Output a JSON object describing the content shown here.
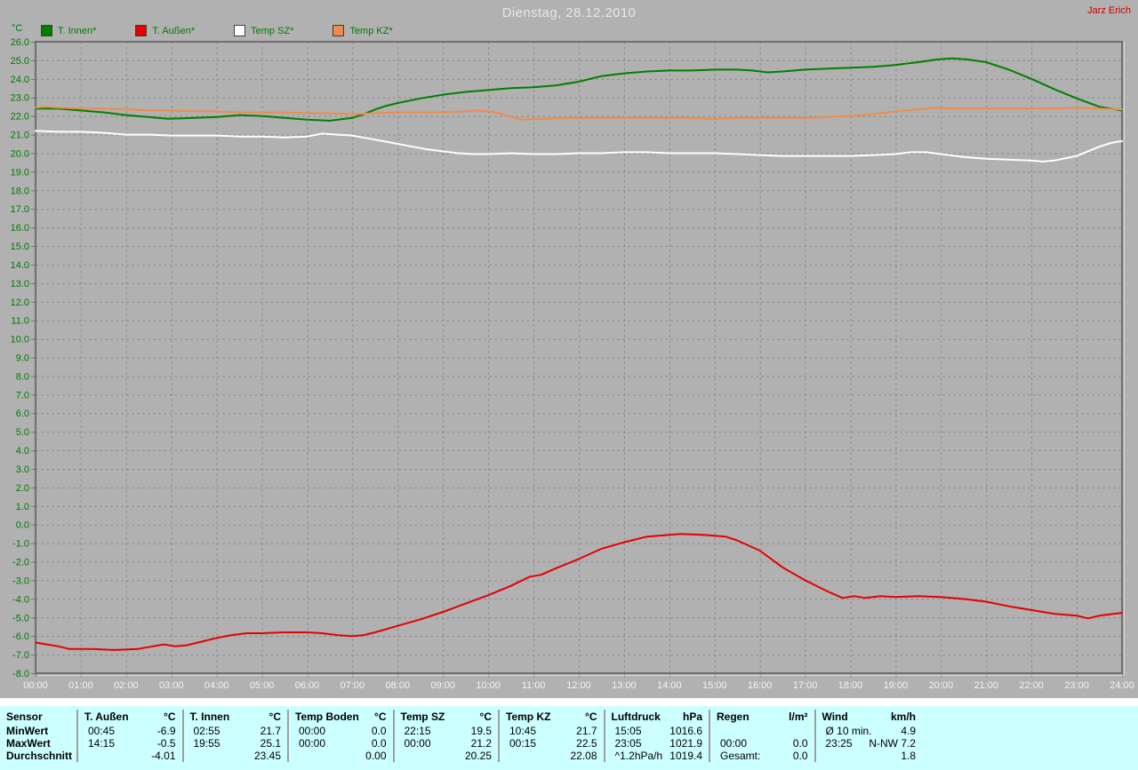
{
  "header": {
    "title": "Dienstag, 28.12.2010",
    "watermark": "Jarz Erich",
    "y_axis_unit": "°C"
  },
  "colors": {
    "background": "#b1b1b1",
    "plot_grid": "#8d8d8d",
    "plot_axis": "#6e6e6e",
    "y_tick_label": "#007b00",
    "x_tick_label": "#f4f4f4",
    "title_text": "#e7e7e7",
    "watermark_text": "#cc0000",
    "legend_text": "#007b00",
    "table_background": "#ccffff",
    "table_text": "#000000",
    "table_divider": "#9e9e9e",
    "gap_strip": "#ffffff"
  },
  "chart_data": {
    "type": "line",
    "title": "Dienstag, 28.12.2010",
    "xlabel": "",
    "ylabel": "°C",
    "x_range": [
      0,
      24
    ],
    "ylim": [
      -8,
      26
    ],
    "y_tick_step": 1,
    "grid": "dashed",
    "legend_position": "top-left",
    "x_tick_labels": [
      "00:00",
      "01:00",
      "02:00",
      "03:00",
      "04:00",
      "05:00",
      "06:00",
      "07:00",
      "08:00",
      "09:00",
      "10:00",
      "11:00",
      "12:00",
      "13:00",
      "14:00",
      "15:00",
      "16:00",
      "17:00",
      "18:00",
      "19:00",
      "20:00",
      "21:00",
      "22:00",
      "23:00",
      "24:00"
    ],
    "y_tick_labels": [
      "-8.0",
      "-7.0",
      "-6.0",
      "-5.0",
      "-4.0",
      "-3.0",
      "-2.0",
      "-1.0",
      "0.0",
      "1.0",
      "2.0",
      "3.0",
      "4.0",
      "5.0",
      "6.0",
      "7.0",
      "8.0",
      "9.0",
      "10.0",
      "11.0",
      "12.0",
      "13.0",
      "14.0",
      "15.0",
      "16.0",
      "17.0",
      "18.0",
      "19.0",
      "20.0",
      "21.0",
      "22.0",
      "23.0",
      "24.0",
      "25.0",
      "26.0"
    ],
    "series": [
      {
        "name": "T. Innen*",
        "color": "#007f00",
        "points": [
          [
            0,
            22.4
          ],
          [
            0.5,
            22.4
          ],
          [
            1,
            22.3
          ],
          [
            1.5,
            22.2
          ],
          [
            2,
            22.05
          ],
          [
            2.5,
            21.95
          ],
          [
            2.92,
            21.85
          ],
          [
            3.5,
            21.9
          ],
          [
            4,
            21.95
          ],
          [
            4.5,
            22.05
          ],
          [
            5,
            22.0
          ],
          [
            5.5,
            21.9
          ],
          [
            6,
            21.8
          ],
          [
            6.5,
            21.75
          ],
          [
            7,
            21.9
          ],
          [
            7.25,
            22.1
          ],
          [
            7.5,
            22.35
          ],
          [
            7.75,
            22.55
          ],
          [
            8,
            22.7
          ],
          [
            8.5,
            22.95
          ],
          [
            9,
            23.15
          ],
          [
            9.5,
            23.3
          ],
          [
            10,
            23.4
          ],
          [
            10.5,
            23.5
          ],
          [
            11,
            23.55
          ],
          [
            11.5,
            23.65
          ],
          [
            12,
            23.85
          ],
          [
            12.5,
            24.15
          ],
          [
            13,
            24.3
          ],
          [
            13.5,
            24.4
          ],
          [
            14,
            24.45
          ],
          [
            14.5,
            24.45
          ],
          [
            15,
            24.5
          ],
          [
            15.5,
            24.5
          ],
          [
            15.83,
            24.45
          ],
          [
            16.17,
            24.35
          ],
          [
            16.5,
            24.4
          ],
          [
            17,
            24.5
          ],
          [
            17.5,
            24.55
          ],
          [
            18,
            24.6
          ],
          [
            18.5,
            24.65
          ],
          [
            19,
            24.75
          ],
          [
            19.5,
            24.9
          ],
          [
            19.92,
            25.05
          ],
          [
            20.25,
            25.1
          ],
          [
            20.58,
            25.05
          ],
          [
            21,
            24.9
          ],
          [
            21.5,
            24.5
          ],
          [
            22,
            24.0
          ],
          [
            22.5,
            23.45
          ],
          [
            23,
            22.95
          ],
          [
            23.5,
            22.5
          ],
          [
            24,
            22.3
          ]
        ]
      },
      {
        "name": "T. Außen*",
        "color": "#e60000",
        "points": [
          [
            0,
            -6.35
          ],
          [
            0.5,
            -6.55
          ],
          [
            0.75,
            -6.7
          ],
          [
            1.25,
            -6.7
          ],
          [
            1.75,
            -6.75
          ],
          [
            2.25,
            -6.7
          ],
          [
            2.6,
            -6.55
          ],
          [
            2.83,
            -6.45
          ],
          [
            3.08,
            -6.55
          ],
          [
            3.33,
            -6.5
          ],
          [
            3.67,
            -6.3
          ],
          [
            4,
            -6.1
          ],
          [
            4.33,
            -5.95
          ],
          [
            4.67,
            -5.85
          ],
          [
            5,
            -5.85
          ],
          [
            5.5,
            -5.8
          ],
          [
            6,
            -5.8
          ],
          [
            6.33,
            -5.85
          ],
          [
            6.67,
            -5.95
          ],
          [
            7,
            -6.0
          ],
          [
            7.25,
            -5.95
          ],
          [
            7.5,
            -5.8
          ],
          [
            8,
            -5.45
          ],
          [
            8.5,
            -5.1
          ],
          [
            9,
            -4.7
          ],
          [
            9.5,
            -4.25
          ],
          [
            10,
            -3.8
          ],
          [
            10.5,
            -3.3
          ],
          [
            10.92,
            -2.8
          ],
          [
            11.17,
            -2.7
          ],
          [
            11.5,
            -2.35
          ],
          [
            12,
            -1.85
          ],
          [
            12.5,
            -1.3
          ],
          [
            13,
            -0.95
          ],
          [
            13.5,
            -0.65
          ],
          [
            14,
            -0.55
          ],
          [
            14.25,
            -0.5
          ],
          [
            14.75,
            -0.55
          ],
          [
            15.25,
            -0.65
          ],
          [
            15.5,
            -0.85
          ],
          [
            16,
            -1.4
          ],
          [
            16.5,
            -2.3
          ],
          [
            17,
            -3.0
          ],
          [
            17.5,
            -3.6
          ],
          [
            17.83,
            -3.95
          ],
          [
            18.08,
            -3.85
          ],
          [
            18.33,
            -3.95
          ],
          [
            18.67,
            -3.85
          ],
          [
            19,
            -3.9
          ],
          [
            19.5,
            -3.85
          ],
          [
            20,
            -3.9
          ],
          [
            20.5,
            -4.0
          ],
          [
            21,
            -4.15
          ],
          [
            21.5,
            -4.4
          ],
          [
            22,
            -4.6
          ],
          [
            22.5,
            -4.8
          ],
          [
            23,
            -4.9
          ],
          [
            23.25,
            -5.05
          ],
          [
            23.5,
            -4.9
          ],
          [
            24,
            -4.75
          ]
        ]
      },
      {
        "name": "Temp SZ*",
        "color": "#ffffff",
        "points": [
          [
            0,
            21.2
          ],
          [
            0.5,
            21.15
          ],
          [
            1,
            21.15
          ],
          [
            1.5,
            21.1
          ],
          [
            2,
            21.0
          ],
          [
            2.5,
            21.0
          ],
          [
            3,
            20.95
          ],
          [
            3.5,
            20.95
          ],
          [
            4,
            20.95
          ],
          [
            4.5,
            20.9
          ],
          [
            5,
            20.9
          ],
          [
            5.5,
            20.85
          ],
          [
            6,
            20.9
          ],
          [
            6.33,
            21.05
          ],
          [
            6.67,
            21.0
          ],
          [
            7,
            20.95
          ],
          [
            7.33,
            20.8
          ],
          [
            7.67,
            20.65
          ],
          [
            8,
            20.5
          ],
          [
            8.33,
            20.35
          ],
          [
            8.67,
            20.2
          ],
          [
            9,
            20.1
          ],
          [
            9.33,
            20.0
          ],
          [
            9.67,
            19.95
          ],
          [
            10,
            19.95
          ],
          [
            10.5,
            20.0
          ],
          [
            11,
            19.95
          ],
          [
            11.5,
            19.95
          ],
          [
            12,
            20.0
          ],
          [
            12.5,
            20.0
          ],
          [
            13,
            20.05
          ],
          [
            13.5,
            20.05
          ],
          [
            14,
            20.0
          ],
          [
            14.5,
            20.0
          ],
          [
            15,
            20.0
          ],
          [
            15.5,
            19.95
          ],
          [
            16,
            19.9
          ],
          [
            16.5,
            19.85
          ],
          [
            17,
            19.85
          ],
          [
            17.5,
            19.85
          ],
          [
            18,
            19.85
          ],
          [
            18.5,
            19.9
          ],
          [
            19,
            19.95
          ],
          [
            19.33,
            20.05
          ],
          [
            19.67,
            20.05
          ],
          [
            20,
            19.95
          ],
          [
            20.5,
            19.8
          ],
          [
            21,
            19.7
          ],
          [
            21.5,
            19.65
          ],
          [
            22,
            19.6
          ],
          [
            22.25,
            19.55
          ],
          [
            22.5,
            19.6
          ],
          [
            23,
            19.85
          ],
          [
            23.5,
            20.35
          ],
          [
            23.75,
            20.55
          ],
          [
            24,
            20.65
          ]
        ]
      },
      {
        "name": "Temp KZ*",
        "color": "#f08a4c",
        "points": [
          [
            0,
            22.45
          ],
          [
            0.25,
            22.5
          ],
          [
            0.5,
            22.45
          ],
          [
            1,
            22.4
          ],
          [
            1.5,
            22.4
          ],
          [
            2,
            22.35
          ],
          [
            2.5,
            22.3
          ],
          [
            3,
            22.3
          ],
          [
            3.5,
            22.25
          ],
          [
            4,
            22.25
          ],
          [
            4.5,
            22.2
          ],
          [
            5,
            22.2
          ],
          [
            5.5,
            22.2
          ],
          [
            6,
            22.15
          ],
          [
            6.5,
            22.15
          ],
          [
            7,
            22.1
          ],
          [
            7.5,
            22.15
          ],
          [
            8,
            22.2
          ],
          [
            8.5,
            22.2
          ],
          [
            9,
            22.2
          ],
          [
            9.5,
            22.25
          ],
          [
            9.83,
            22.3
          ],
          [
            10.17,
            22.2
          ],
          [
            10.5,
            21.95
          ],
          [
            10.75,
            21.8
          ],
          [
            11.25,
            21.85
          ],
          [
            11.75,
            21.9
          ],
          [
            12.5,
            21.9
          ],
          [
            13,
            21.9
          ],
          [
            13.5,
            21.9
          ],
          [
            14,
            21.9
          ],
          [
            14.5,
            21.9
          ],
          [
            15,
            21.85
          ],
          [
            15.5,
            21.9
          ],
          [
            16,
            21.9
          ],
          [
            16.5,
            21.9
          ],
          [
            17,
            21.9
          ],
          [
            17.5,
            21.95
          ],
          [
            18,
            22.0
          ],
          [
            18.5,
            22.1
          ],
          [
            19,
            22.25
          ],
          [
            19.5,
            22.35
          ],
          [
            19.83,
            22.45
          ],
          [
            20.25,
            22.4
          ],
          [
            21,
            22.4
          ],
          [
            22,
            22.4
          ],
          [
            22.5,
            22.4
          ],
          [
            23,
            22.45
          ],
          [
            23.5,
            22.4
          ],
          [
            24,
            22.35
          ]
        ]
      }
    ]
  },
  "summary_table": {
    "corner_label": "Sensor",
    "row_labels": [
      "MinWert",
      "MaxWert",
      "Durchschnitt"
    ],
    "groups": [
      {
        "name": "T. Außen",
        "unit": "°C",
        "min_time": "00:45",
        "min_value": "-6.9",
        "max_time": "14:15",
        "max_value": "-0.5",
        "avg_label": "",
        "avg_value": "-4.01"
      },
      {
        "name": "T. Innen",
        "unit": "°C",
        "min_time": "02:55",
        "min_value": "21.7",
        "max_time": "19:55",
        "max_value": "25.1",
        "avg_label": "",
        "avg_value": "23.45"
      },
      {
        "name": "Temp Boden",
        "unit": "°C",
        "min_time": "00:00",
        "min_value": "0.0",
        "max_time": "00:00",
        "max_value": "0.0",
        "avg_label": "",
        "avg_value": "0.00"
      },
      {
        "name": "Temp SZ",
        "unit": "°C",
        "min_time": "22:15",
        "min_value": "19.5",
        "max_time": "00:00",
        "max_value": "21.2",
        "avg_label": "",
        "avg_value": "20.25"
      },
      {
        "name": "Temp KZ",
        "unit": "°C",
        "min_time": "10:45",
        "min_value": "21.7",
        "max_time": "00:15",
        "max_value": "22.5",
        "avg_label": "",
        "avg_value": "22.08"
      },
      {
        "name": "Luftdruck",
        "unit": "hPa",
        "min_time": "15:05",
        "min_value": "1016.6",
        "max_time": "23:05",
        "max_value": "1021.9",
        "avg_label": "^1.2hPa/h",
        "avg_value": "1019.4"
      },
      {
        "name": "Regen",
        "unit": "l/m²",
        "min_time": "",
        "min_value": "",
        "max_time": "00:00",
        "max_value": "0.0",
        "avg_label": "Gesamt:",
        "avg_value": "0.0"
      },
      {
        "name": "Wind",
        "unit": "km/h",
        "min_time": "Ø 10 min.",
        "min_value": "4.9",
        "max_time": "23:25",
        "max_value": "N-NW 7.2",
        "avg_label": "",
        "avg_value": "1.8"
      }
    ]
  }
}
